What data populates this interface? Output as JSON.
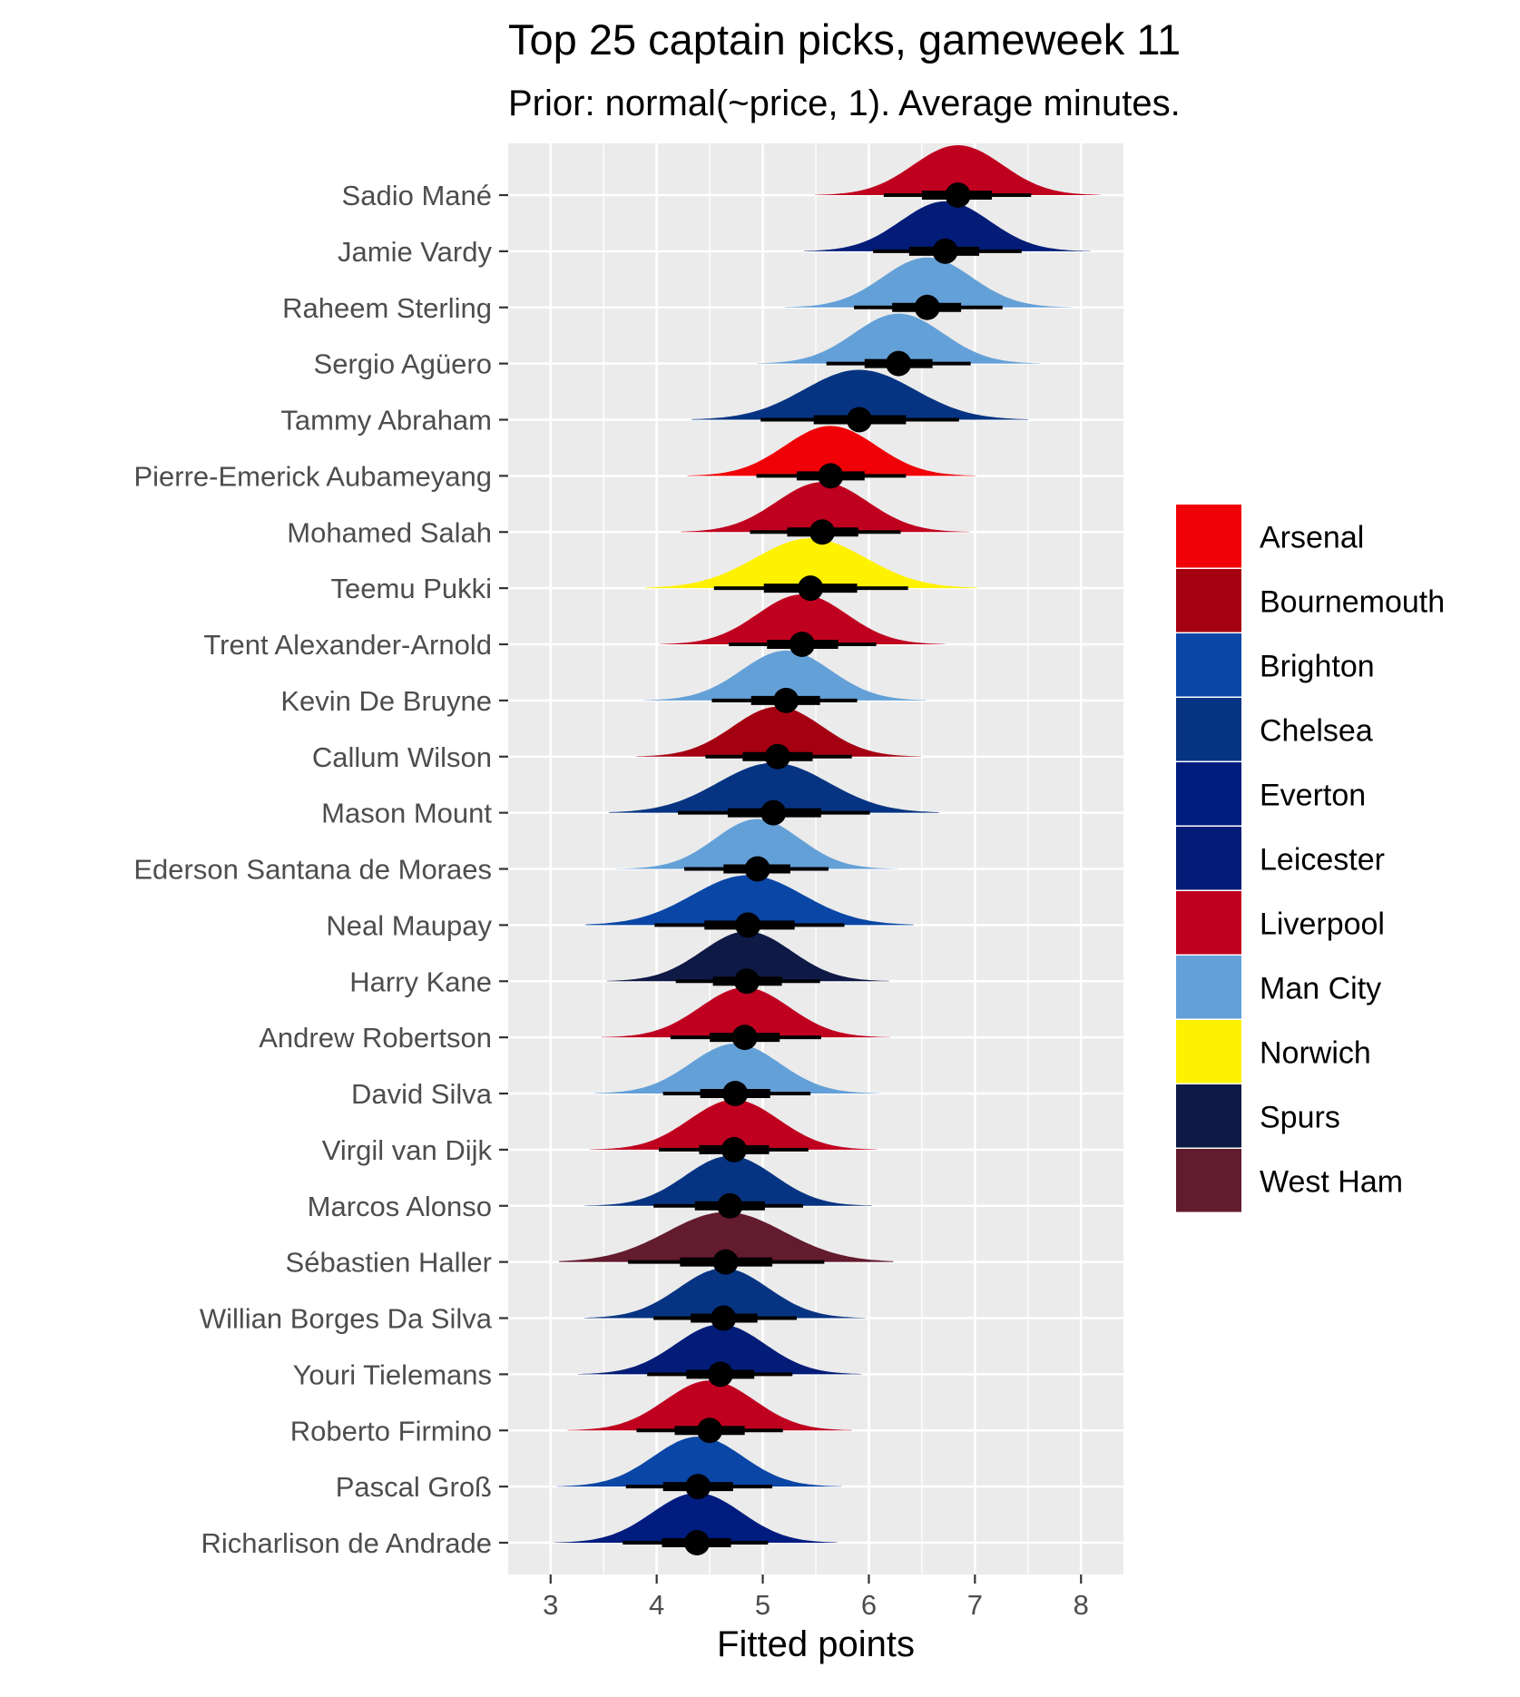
{
  "chart_data": {
    "type": "halfeye",
    "title": "Top 25 captain picks, gameweek 11",
    "subtitle": "Prior: normal(~price, 1). Average minutes.",
    "xlabel": "Fitted points",
    "ylabel": "",
    "xlim": [
      2.6,
      8.4
    ],
    "xticks": [
      3,
      4,
      5,
      6,
      7,
      8
    ],
    "grid": true,
    "legend_position": "right",
    "teams": [
      {
        "name": "Arsenal",
        "color": "#EF0107"
      },
      {
        "name": "Bournemouth",
        "color": "#A50011"
      },
      {
        "name": "Brighton",
        "color": "#0A46A6"
      },
      {
        "name": "Chelsea",
        "color": "#073482"
      },
      {
        "name": "Everton",
        "color": "#001C7F"
      },
      {
        "name": "Leicester",
        "color": "#031C78"
      },
      {
        "name": "Liverpool",
        "color": "#C0001F"
      },
      {
        "name": "Man City",
        "color": "#64A0D8"
      },
      {
        "name": "Norwich",
        "color": "#FFF200"
      },
      {
        "name": "Spurs",
        "color": "#0E1945"
      },
      {
        "name": "West Ham",
        "color": "#631B2E"
      }
    ],
    "players": [
      {
        "name": "Sadio Mané",
        "team": "Liverpool",
        "median": 6.84,
        "q66": [
          6.5,
          7.16
        ],
        "q95": [
          6.14,
          7.53
        ],
        "spread": 0.42
      },
      {
        "name": "Jamie Vardy",
        "team": "Leicester",
        "median": 6.72,
        "q66": [
          6.38,
          7.04
        ],
        "q95": [
          6.04,
          7.44
        ],
        "spread": 0.42
      },
      {
        "name": "Raheem Sterling",
        "team": "Man City",
        "median": 6.55,
        "q66": [
          6.22,
          6.87
        ],
        "q95": [
          5.86,
          7.26
        ],
        "spread": 0.42
      },
      {
        "name": "Sergio Agüero",
        "team": "Man City",
        "median": 6.28,
        "q66": [
          5.96,
          6.6
        ],
        "q95": [
          5.6,
          6.96
        ],
        "spread": 0.42
      },
      {
        "name": "Tammy Abraham",
        "team": "Chelsea",
        "median": 5.91,
        "q66": [
          5.48,
          6.35
        ],
        "q95": [
          4.98,
          6.85
        ],
        "spread": 0.52
      },
      {
        "name": "Pierre-Emerick Aubameyang",
        "team": "Arsenal",
        "median": 5.64,
        "q66": [
          5.32,
          5.96
        ],
        "q95": [
          4.94,
          6.35
        ],
        "spread": 0.43
      },
      {
        "name": "Mohamed Salah",
        "team": "Liverpool",
        "median": 5.56,
        "q66": [
          5.23,
          5.9
        ],
        "q95": [
          4.88,
          6.3
        ],
        "spread": 0.43
      },
      {
        "name": "Teemu Pukki",
        "team": "Norwich",
        "median": 5.45,
        "q66": [
          5.01,
          5.89
        ],
        "q95": [
          4.54,
          6.37
        ],
        "spread": 0.52
      },
      {
        "name": "Trent Alexander-Arnold",
        "team": "Liverpool",
        "median": 5.37,
        "q66": [
          5.04,
          5.71
        ],
        "q95": [
          4.68,
          6.07
        ],
        "spread": 0.42
      },
      {
        "name": "Kevin De Bruyne",
        "team": "Man City",
        "median": 5.22,
        "q66": [
          4.89,
          5.54
        ],
        "q95": [
          4.52,
          5.89
        ],
        "spread": 0.42
      },
      {
        "name": "Callum Wilson",
        "team": "Bournemouth",
        "median": 5.14,
        "q66": [
          4.81,
          5.47
        ],
        "q95": [
          4.46,
          5.84
        ],
        "spread": 0.42
      },
      {
        "name": "Mason Mount",
        "team": "Chelsea",
        "median": 5.1,
        "q66": [
          4.67,
          5.55
        ],
        "q95": [
          4.2,
          6.01
        ],
        "spread": 0.52
      },
      {
        "name": "Ederson Santana de Moraes",
        "team": "Man City",
        "median": 4.95,
        "q66": [
          4.63,
          5.26
        ],
        "q95": [
          4.26,
          5.62
        ],
        "spread": 0.4
      },
      {
        "name": "Neal Maupay",
        "team": "Brighton",
        "median": 4.86,
        "q66": [
          4.45,
          5.3
        ],
        "q95": [
          3.98,
          5.77
        ],
        "spread": 0.52
      },
      {
        "name": "Harry Kane",
        "team": "Spurs",
        "median": 4.85,
        "q66": [
          4.53,
          5.18
        ],
        "q95": [
          4.18,
          5.54
        ],
        "spread": 0.42
      },
      {
        "name": "Andrew Robertson",
        "team": "Liverpool",
        "median": 4.83,
        "q66": [
          4.5,
          5.16
        ],
        "q95": [
          4.13,
          5.55
        ],
        "spread": 0.42
      },
      {
        "name": "David Silva",
        "team": "Man City",
        "median": 4.74,
        "q66": [
          4.41,
          5.07
        ],
        "q95": [
          4.06,
          5.45
        ],
        "spread": 0.42
      },
      {
        "name": "Virgil van Dijk",
        "team": "Liverpool",
        "median": 4.73,
        "q66": [
          4.4,
          5.06
        ],
        "q95": [
          4.02,
          5.43
        ],
        "spread": 0.42
      },
      {
        "name": "Marcos Alonso",
        "team": "Chelsea",
        "median": 4.69,
        "q66": [
          4.36,
          5.02
        ],
        "q95": [
          3.97,
          5.38
        ],
        "spread": 0.42
      },
      {
        "name": "Sébastien Haller",
        "team": "West Ham",
        "median": 4.65,
        "q66": [
          4.22,
          5.09
        ],
        "q95": [
          3.73,
          5.58
        ],
        "spread": 0.55
      },
      {
        "name": "Willian Borges Da Silva",
        "team": "Chelsea",
        "median": 4.63,
        "q66": [
          4.32,
          4.95
        ],
        "q95": [
          3.97,
          5.32
        ],
        "spread": 0.42
      },
      {
        "name": "Youri Tielemans",
        "team": "Leicester",
        "median": 4.6,
        "q66": [
          4.28,
          4.92
        ],
        "q95": [
          3.91,
          5.28
        ],
        "spread": 0.42
      },
      {
        "name": "Roberto Firmino",
        "team": "Liverpool",
        "median": 4.5,
        "q66": [
          4.17,
          4.83
        ],
        "q95": [
          3.81,
          5.19
        ],
        "spread": 0.42
      },
      {
        "name": "Pascal Groß",
        "team": "Brighton",
        "median": 4.39,
        "q66": [
          4.06,
          4.72
        ],
        "q95": [
          3.71,
          5.09
        ],
        "spread": 0.42
      },
      {
        "name": "Richarlison de Andrade",
        "team": "Everton",
        "median": 4.38,
        "q66": [
          4.05,
          4.7
        ],
        "q95": [
          3.68,
          5.05
        ],
        "spread": 0.42
      }
    ]
  }
}
